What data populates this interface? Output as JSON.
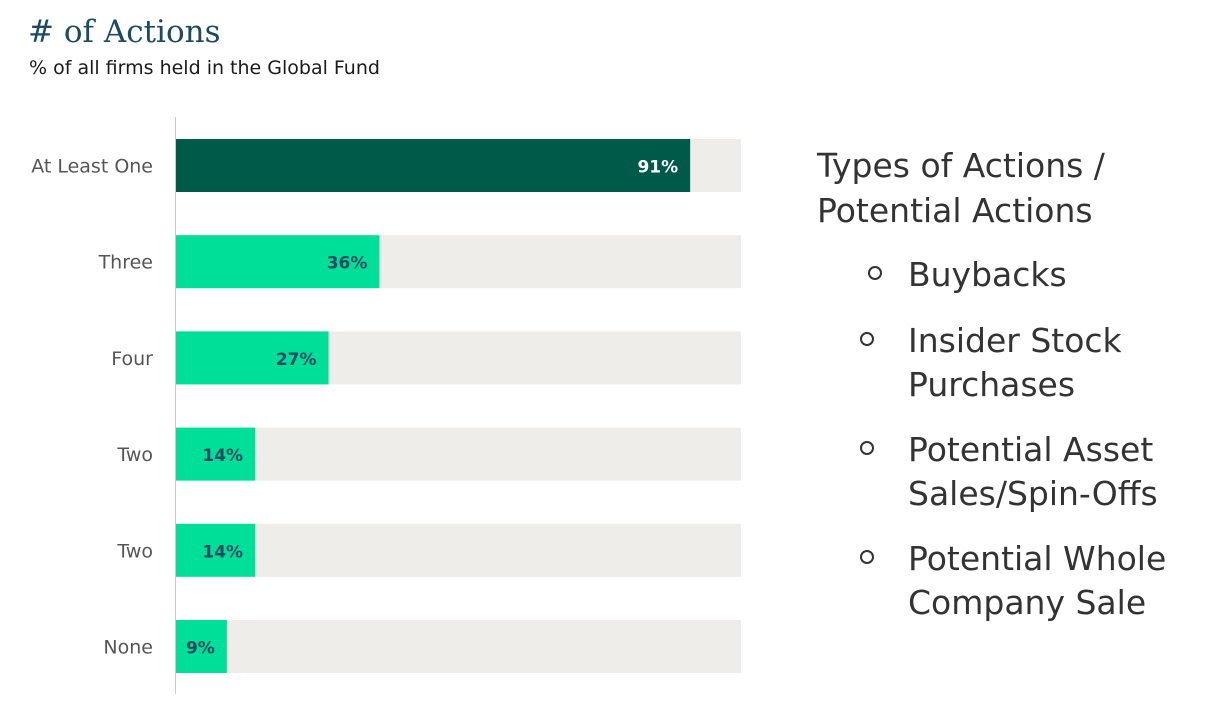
{
  "title": "# of Actions",
  "subtitle": "% of all firms held in the Global Fund",
  "legend": {
    "heading": "Types of Actions / Potential Actions",
    "items": [
      "Buybacks",
      "Insider Stock Purchases",
      "Potential Asset Sales/Spin-Offs",
      "Potential Whole Company Sale"
    ]
  },
  "colors": {
    "highlight_bar": "#005a4a",
    "bar": "#00df97",
    "track": "#eeede9",
    "highlight_label": "#ffffff",
    "label": "#1c4a63",
    "category_text": "#555555",
    "axis": "#cccccc"
  },
  "chart_data": {
    "type": "bar",
    "orientation": "horizontal",
    "title": "# of Actions",
    "subtitle": "% of all firms held in the Global Fund",
    "categories": [
      "At Least One",
      "Three",
      "Four",
      "Two",
      "Two",
      "None"
    ],
    "values": [
      91,
      36,
      27,
      14,
      14,
      9
    ],
    "value_labels": [
      "91%",
      "36%",
      "27%",
      "14%",
      "14%",
      "9%"
    ],
    "xlim": [
      0,
      100
    ],
    "highlighted_index": 0,
    "grid": false
  }
}
